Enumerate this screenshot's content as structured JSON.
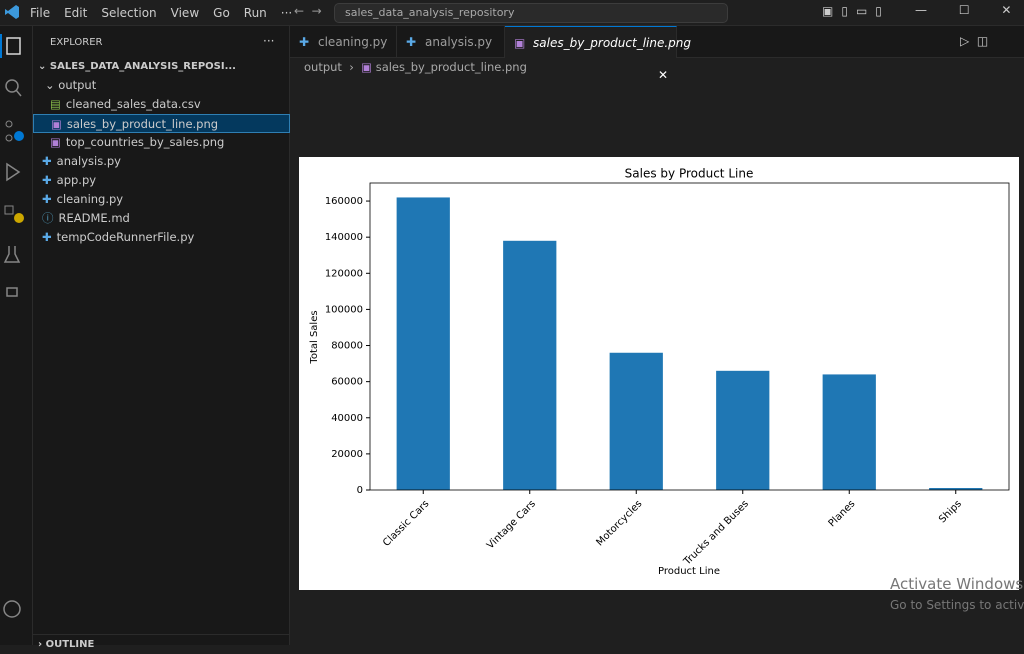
{
  "menu": [
    "File",
    "Edit",
    "Selection",
    "View",
    "Go",
    "Run",
    "···"
  ],
  "search": "sales_data_analysis_repository",
  "sidebar": {
    "title": "EXPLORER",
    "root": "SALES_DATA_ANALYSIS_REPOSI...",
    "folder": {
      "name": "output",
      "files": [
        "cleaned_sales_data.csv",
        "sales_by_product_line.png",
        "top_countries_by_sales.png"
      ]
    },
    "files": [
      "analysis.py",
      "app.py",
      "cleaning.py",
      "README.md",
      "tempCodeRunnerFile.py"
    ],
    "outline": "OUTLINE"
  },
  "tabs": [
    "cleaning.py",
    "analysis.py",
    "sales_by_product_line.png"
  ],
  "breadcrumb": [
    "output",
    "sales_by_product_line.png"
  ],
  "watermark": {
    "title": "Activate Windows",
    "text": "Go to Settings to activate"
  },
  "chart_data": {
    "type": "bar",
    "title": "Sales by Product Line",
    "x_label": "Product Line",
    "y_label": "Total Sales",
    "categories": [
      "Classic Cars",
      "Vintage Cars",
      "Motorcycles",
      "Trucks and Buses",
      "Planes",
      "Ships"
    ],
    "values": [
      162000,
      138000,
      76000,
      66000,
      64000,
      1100
    ],
    "color": "#1f77b4",
    "ylim": [
      0,
      170000
    ],
    "yticks": [
      0,
      20000,
      40000,
      60000,
      80000,
      100000,
      120000,
      140000,
      160000
    ]
  }
}
